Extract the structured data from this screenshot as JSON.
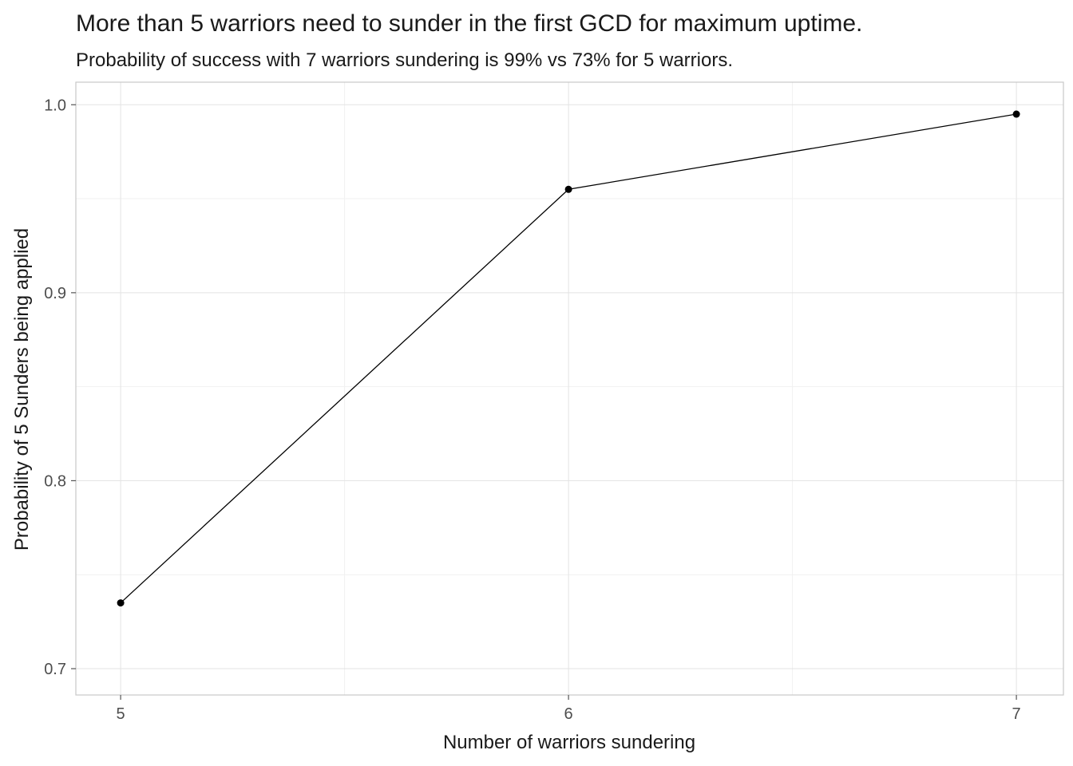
{
  "chart_data": {
    "type": "line",
    "title": "More than 5 warriors need to sunder in the first GCD for maximum uptime.",
    "subtitle": "Probability of success with 7 warriors sundering is 99% vs 73% for 5 warriors.",
    "xlabel": "Number of warriors sundering",
    "ylabel": "Probability of 5 Sunders being applied",
    "x": [
      5,
      6,
      7
    ],
    "values": [
      0.735,
      0.955,
      0.995
    ],
    "xticks": [
      5,
      6,
      7
    ],
    "xtick_labels": [
      "5",
      "6",
      "7"
    ],
    "yticks": [
      0.7,
      0.8,
      0.9,
      1.0
    ],
    "ytick_labels": [
      "0.7",
      "0.8",
      "0.9",
      "1.0"
    ],
    "x_minor": [
      5.5,
      6.5
    ],
    "y_minor": [
      0.75,
      0.85,
      0.95
    ],
    "xlim": [
      4.9,
      7.105
    ],
    "ylim": [
      0.686,
      1.012
    ],
    "grid": true,
    "legend_position": "none",
    "colors": {
      "line": "#000000",
      "point": "#000000",
      "grid_major": "#e3e3e3",
      "grid_minor": "#f1f1f1",
      "panel_border": "#c8c8c8",
      "tick_mark": "#555555",
      "tick_label": "#4d4d4d",
      "text": "#1a1a1a"
    }
  }
}
